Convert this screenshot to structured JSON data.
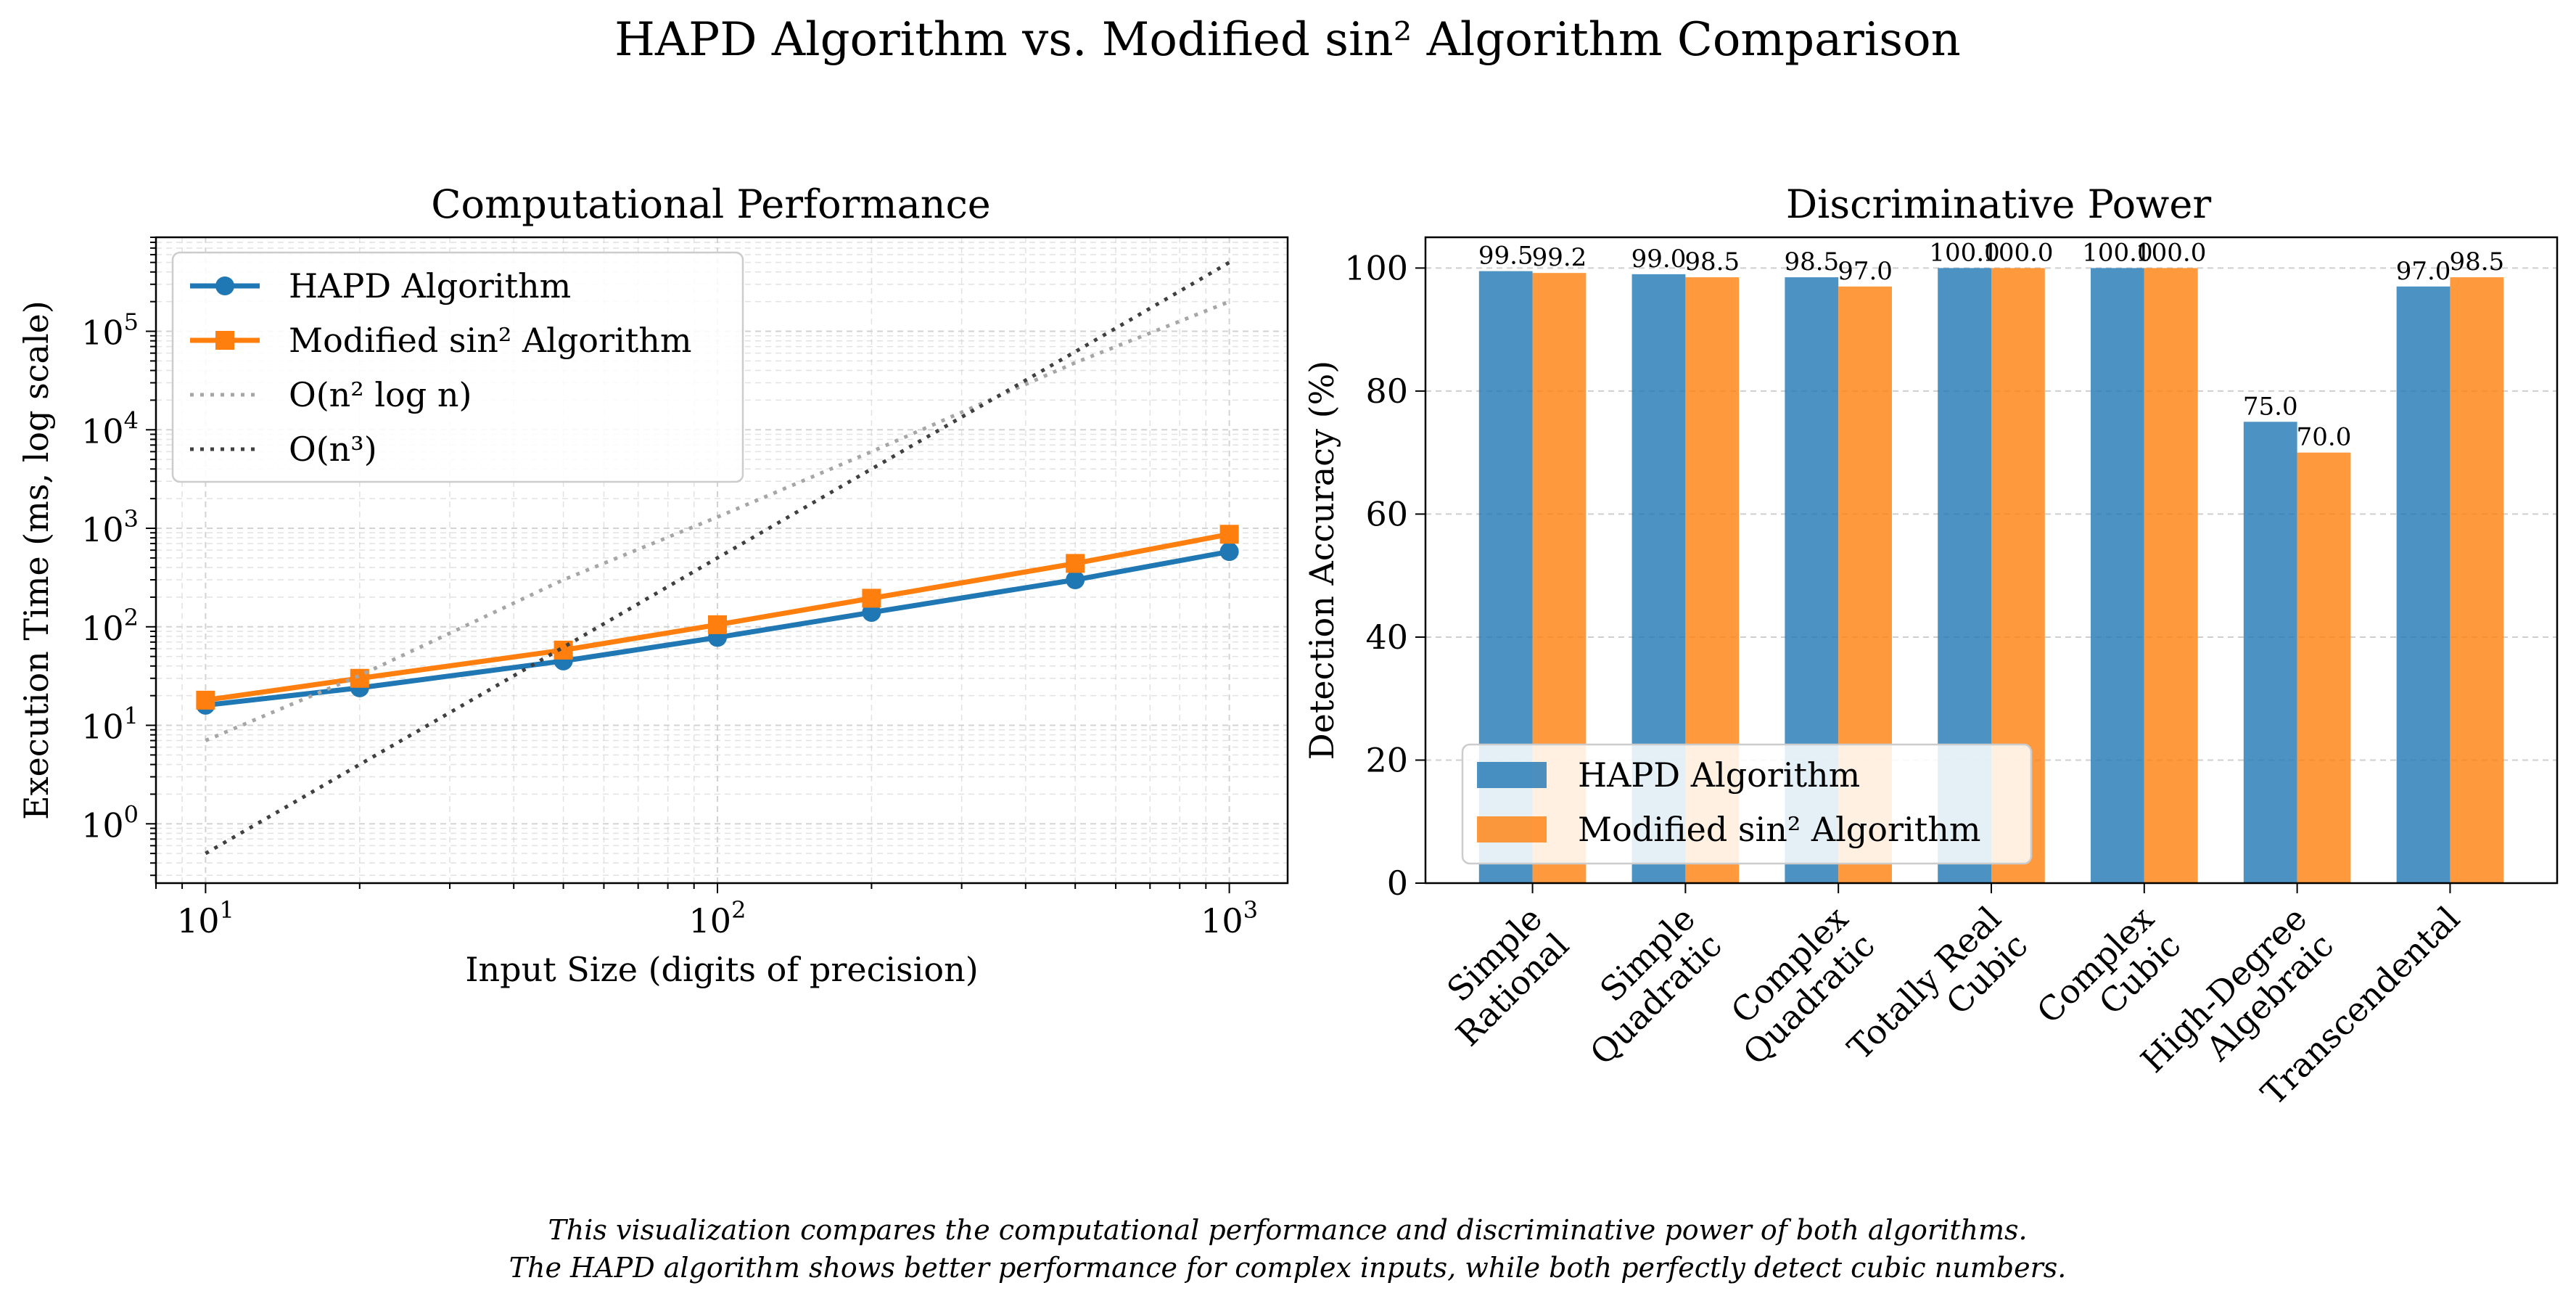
{
  "figure": {
    "title": "HAPD Algorithm vs. Modified sin² Algorithm Comparison",
    "caption": [
      "This visualization compares the computational performance and discriminative power of both algorithms.",
      "The HAPD algorithm shows better performance for complex inputs, while both perfectly detect cubic numbers."
    ]
  },
  "colors": {
    "hapd": "#1f77b4",
    "sin2": "#ff7f0e",
    "nlogn": "#a6a6a6",
    "n3": "#404040",
    "grid": "#cfcfcf"
  },
  "chart_data": [
    {
      "type": "line",
      "title": "Computational Performance",
      "xlabel": "Input Size (digits of precision)",
      "ylabel": "Execution Time (ms, log scale)",
      "xscale": "log",
      "yscale": "log",
      "xlim": [
        8,
        1300
      ],
      "ylim": [
        0.25,
        900000
      ],
      "grid": true,
      "legend_position": "upper-left",
      "x": [
        10,
        20,
        50,
        100,
        200,
        500,
        1000
      ],
      "xticks": [
        {
          "value": 10,
          "base": "10",
          "exp": "1"
        },
        {
          "value": 100,
          "base": "10",
          "exp": "2"
        },
        {
          "value": 1000,
          "base": "10",
          "exp": "3"
        }
      ],
      "yticks": [
        {
          "value": 1,
          "base": "10",
          "exp": "0"
        },
        {
          "value": 10,
          "base": "10",
          "exp": "1"
        },
        {
          "value": 100,
          "base": "10",
          "exp": "2"
        },
        {
          "value": 1000,
          "base": "10",
          "exp": "3"
        },
        {
          "value": 10000,
          "base": "10",
          "exp": "4"
        },
        {
          "value": 100000,
          "base": "10",
          "exp": "5"
        }
      ],
      "series": [
        {
          "name": "HAPD Algorithm",
          "style": "solid",
          "marker": "circle",
          "color_key": "hapd",
          "values": [
            16,
            24,
            45,
            78,
            140,
            300,
            580
          ]
        },
        {
          "name": "Modified sin² Algorithm",
          "style": "solid",
          "marker": "square",
          "color_key": "sin2",
          "values": [
            18,
            30,
            58,
            105,
            195,
            440,
            870
          ]
        },
        {
          "name": "O(n² log n)",
          "style": "dotted",
          "marker": "none",
          "color_key": "nlogn",
          "values": [
            7,
            32,
            300,
            1300,
            6000,
            48000,
            200000
          ]
        },
        {
          "name": "O(n³)",
          "style": "dotted",
          "marker": "none",
          "color_key": "n3",
          "values": [
            0.5,
            4,
            62,
            500,
            4000,
            62000,
            500000
          ]
        }
      ]
    },
    {
      "type": "bar",
      "title": "Discriminative Power",
      "xlabel": "",
      "ylabel": "Detection Accuracy (%)",
      "ylim": [
        0,
        105
      ],
      "yticks": [
        "0",
        "20",
        "40",
        "60",
        "80",
        "100"
      ],
      "grid": true,
      "legend_position": "lower-left",
      "categories": [
        [
          "Simple",
          "Rational"
        ],
        [
          "Simple",
          "Quadratic"
        ],
        [
          "Complex",
          "Quadratic"
        ],
        [
          "Totally Real",
          "Cubic"
        ],
        [
          "Complex",
          "Cubic"
        ],
        [
          "High-Degree",
          "Algebraic"
        ],
        [
          "Transcendental"
        ]
      ],
      "series": [
        {
          "name": "HAPD Algorithm",
          "color_key": "hapd",
          "values": [
            99.5,
            99.0,
            98.5,
            100.0,
            100.0,
            75.0,
            97.0
          ],
          "labels": [
            "99.5",
            "99.0",
            "98.5",
            "100.0",
            "100.0",
            "75.0",
            "97.0"
          ]
        },
        {
          "name": "Modified sin² Algorithm",
          "color_key": "sin2",
          "values": [
            99.2,
            98.5,
            97.0,
            100.0,
            100.0,
            70.0,
            98.5
          ],
          "labels": [
            "99.2",
            "98.5",
            "97.0",
            "100.0",
            "100.0",
            "70.0",
            "98.5"
          ]
        }
      ]
    }
  ]
}
